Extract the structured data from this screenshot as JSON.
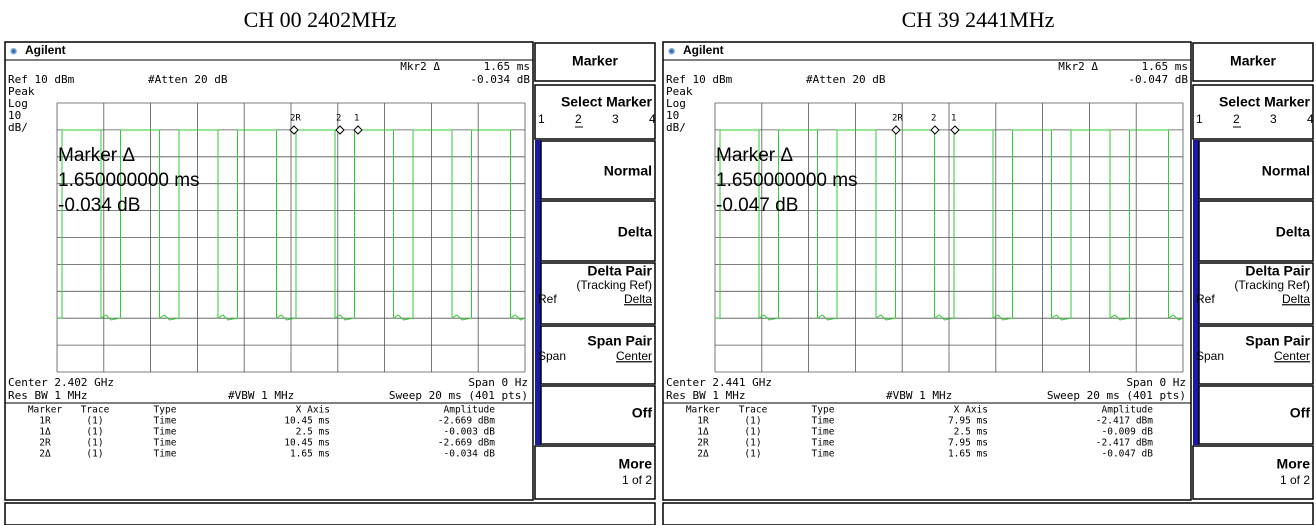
{
  "panels": [
    {
      "heading": "CH 00 2402MHz",
      "brand": "Agilent",
      "readout": {
        "label": "Mkr2 Δ",
        "x": "1.65 ms",
        "y": "-0.034 dB"
      },
      "ref": "Ref 10 dBm",
      "atten": "#Atten 20 dB",
      "scale": [
        "Peak",
        "Log",
        "10",
        "dB/"
      ],
      "trace_markers": [
        "2R",
        "2",
        "1"
      ],
      "marker_big": [
        "Marker Δ",
        "1.650000000 ms",
        "-0.034 dB"
      ],
      "center": "Center 2.402 GHz",
      "span": "Span 0 Hz",
      "rbw": "Res BW 1 MHz",
      "vbw": "#VBW 1 MHz",
      "sweep": "Sweep 20 ms (401 pts)",
      "table": {
        "header": [
          "Marker",
          "Trace",
          "Type",
          "X Axis",
          "Amplitude"
        ],
        "rows": [
          [
            "1R",
            "(1)",
            "Time",
            "10.45 ms",
            "-2.669 dBm"
          ],
          [
            "1Δ",
            "(1)",
            "Time",
            "2.5 ms",
            "-0.003 dB"
          ],
          [
            "2R",
            "(1)",
            "Time",
            "10.45 ms",
            "-2.669 dBm"
          ],
          [
            "2Δ",
            "(1)",
            "Time",
            "1.65 ms",
            "-0.034 dB"
          ]
        ]
      },
      "softkeys": {
        "title": "Marker",
        "select": {
          "label": "Select Marker",
          "options": [
            "1",
            "2",
            "3",
            "4"
          ]
        },
        "normal": "Normal",
        "delta": "Delta",
        "delta_pair": {
          "label": "Delta Pair",
          "sub": "(Tracking Ref)",
          "left": "Ref",
          "right": "Delta"
        },
        "span_pair": {
          "label": "Span Pair",
          "left": "Span",
          "right": "Center"
        },
        "off": "Off",
        "more": {
          "label": "More",
          "sub": "1 of 2"
        }
      }
    },
    {
      "heading": "CH 39 2441MHz",
      "brand": "Agilent",
      "readout": {
        "label": "Mkr2 Δ",
        "x": "1.65 ms",
        "y": "-0.047 dB"
      },
      "ref": "Ref 10 dBm",
      "atten": "#Atten 20 dB",
      "scale": [
        "Peak",
        "Log",
        "10",
        "dB/"
      ],
      "trace_markers": [
        "2R",
        "2",
        "1"
      ],
      "marker_big": [
        "Marker Δ",
        "1.650000000 ms",
        "-0.047 dB"
      ],
      "center": "Center 2.441 GHz",
      "span": "Span 0 Hz",
      "rbw": "Res BW 1 MHz",
      "vbw": "#VBW 1 MHz",
      "sweep": "Sweep 20 ms (401 pts)",
      "table": {
        "header": [
          "Marker",
          "Trace",
          "Type",
          "X Axis",
          "Amplitude"
        ],
        "rows": [
          [
            "1R",
            "(1)",
            "Time",
            "7.95 ms",
            "-2.417 dBm"
          ],
          [
            "1Δ",
            "(1)",
            "Time",
            "2.5 ms",
            "-0.009 dB"
          ],
          [
            "2R",
            "(1)",
            "Time",
            "7.95 ms",
            "-2.417 dBm"
          ],
          [
            "2Δ",
            "(1)",
            "Time",
            "1.65 ms",
            "-0.047 dB"
          ]
        ]
      },
      "softkeys": {
        "title": "Marker",
        "select": {
          "label": "Select Marker",
          "options": [
            "1",
            "2",
            "3",
            "4"
          ]
        },
        "normal": "Normal",
        "delta": "Delta",
        "delta_pair": {
          "label": "Delta Pair",
          "sub": "(Tracking Ref)",
          "left": "Ref",
          "right": "Delta"
        },
        "span_pair": {
          "label": "Span Pair",
          "left": "Span",
          "right": "Center"
        },
        "off": "Off",
        "more": {
          "label": "More",
          "sub": "1 of 2"
        }
      }
    }
  ]
}
